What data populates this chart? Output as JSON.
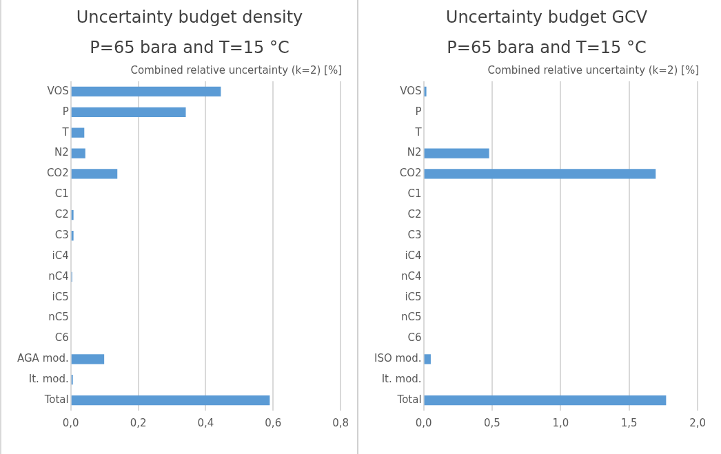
{
  "chart_data": [
    {
      "type": "bar",
      "orientation": "horizontal",
      "title": "Uncertainty budget density",
      "subtitle": "P=65 bara and T=15 °C",
      "xlabel": "Combined relative uncertainty (k=2) [%]",
      "categories": [
        "VOS",
        "P",
        "T",
        "N2",
        "CO2",
        "C1",
        "C2",
        "C3",
        "iC4",
        "nC4",
        "iC5",
        "nC5",
        "C6",
        "AGA mod.",
        "It. mod.",
        "Total"
      ],
      "values": [
        0.445,
        0.341,
        0.04,
        0.043,
        0.138,
        0,
        0.008,
        0.008,
        0,
        0.004,
        0,
        0,
        0,
        0.099,
        0.006,
        0.59
      ],
      "color": "#5b9bd5",
      "xlim": [
        0,
        0.8
      ],
      "xticks": [
        {
          "value": 0,
          "label": "0,0"
        },
        {
          "value": 0.2,
          "label": "0,2"
        },
        {
          "value": 0.4,
          "label": "0,4"
        },
        {
          "value": 0.6,
          "label": "0,6"
        },
        {
          "value": 0.8,
          "label": "0,8"
        }
      ],
      "grid": "x",
      "legend": false
    },
    {
      "type": "bar",
      "orientation": "horizontal",
      "title": "Uncertainty budget GCV",
      "subtitle": "P=65 bara and T=15 °C",
      "xlabel": "Combined relative uncertainty (k=2) [%]",
      "categories": [
        "VOS",
        "P",
        "T",
        "N2",
        "CO2",
        "C1",
        "C2",
        "C3",
        "iC4",
        "nC4",
        "iC5",
        "nC5",
        "C6",
        "ISO mod.",
        "It. mod.",
        "Total"
      ],
      "values": [
        0.02,
        0,
        0,
        0.478,
        1.694,
        0,
        0,
        0,
        0,
        0,
        0,
        0,
        0,
        0.052,
        0,
        1.77
      ],
      "color": "#5b9bd5",
      "xlim": [
        0,
        2.0
      ],
      "xticks": [
        {
          "value": 0,
          "label": "0,0"
        },
        {
          "value": 0.5,
          "label": "0,5"
        },
        {
          "value": 1.0,
          "label": "1,0"
        },
        {
          "value": 1.5,
          "label": "1,5"
        },
        {
          "value": 2.0,
          "label": "2,0"
        }
      ],
      "grid": "x",
      "legend": false
    }
  ]
}
